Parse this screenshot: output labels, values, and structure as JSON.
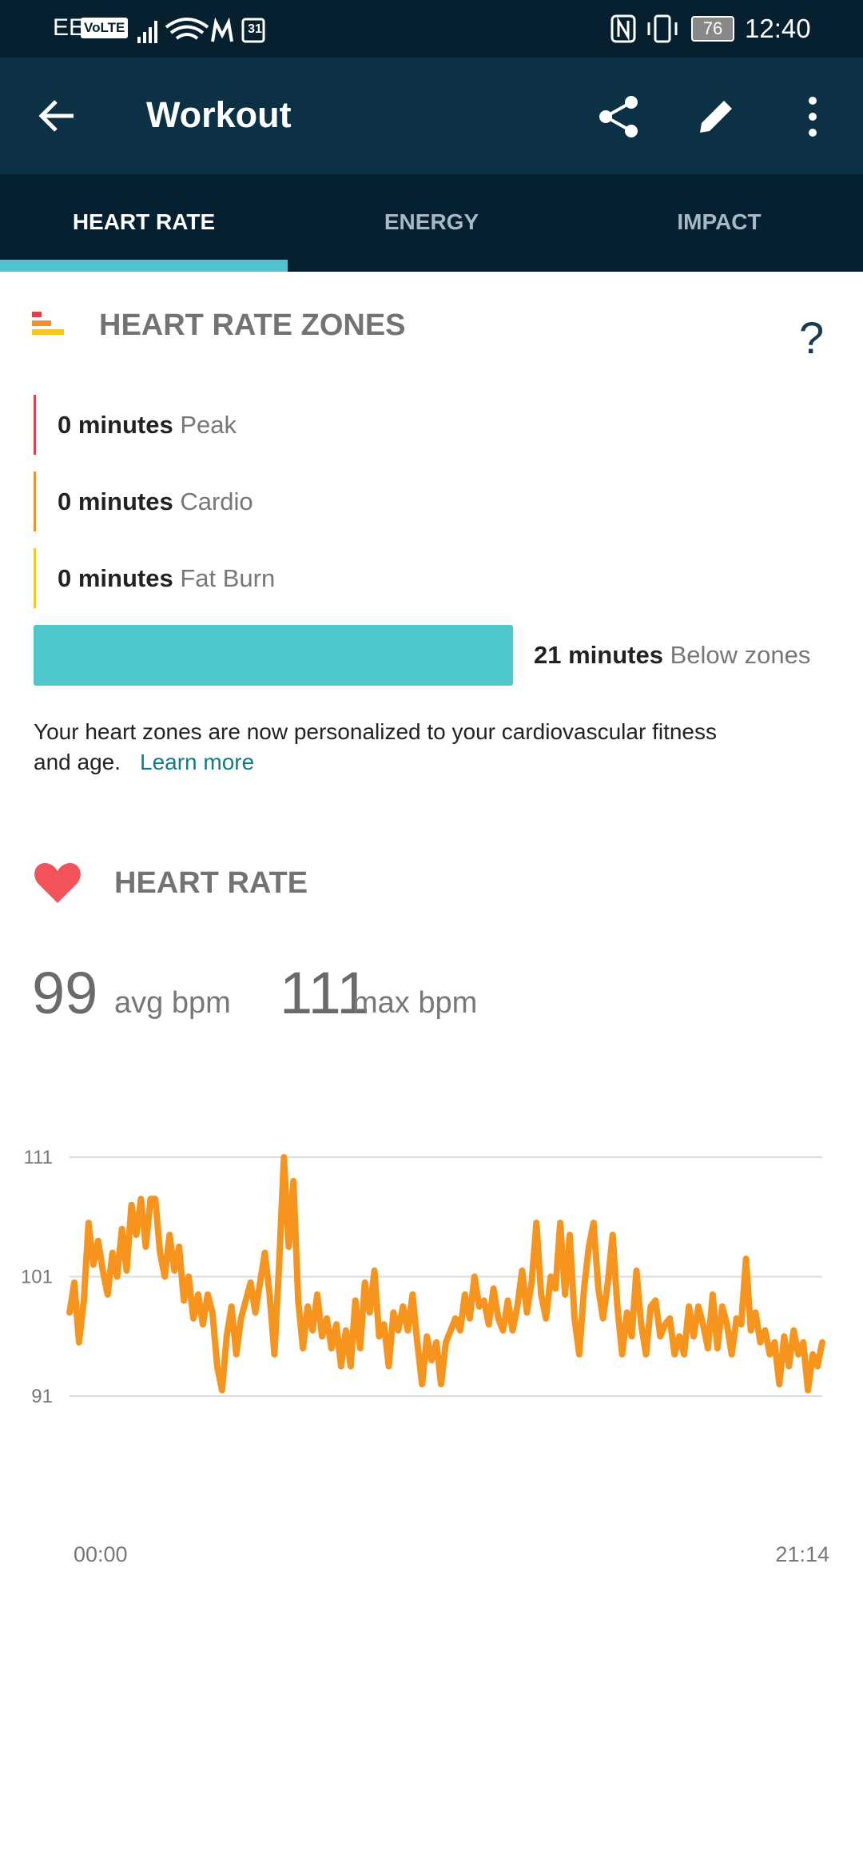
{
  "status_bar": {
    "carrier": "EE",
    "volte": "VoLTE",
    "calendar": "31",
    "battery": "76",
    "time": "12:40"
  },
  "app_bar": {
    "title": "Workout"
  },
  "tabs": [
    "HEART RATE",
    "ENERGY",
    "IMPACT"
  ],
  "zones": {
    "title": "HEART RATE ZONES",
    "help": "?",
    "rows": [
      {
        "minutes": "0 minutes",
        "label": "Peak"
      },
      {
        "minutes": "0 minutes",
        "label": "Cardio"
      },
      {
        "minutes": "0 minutes",
        "label": "Fat Burn"
      }
    ],
    "below": {
      "minutes": "21 minutes",
      "label": "Below zones"
    },
    "note_line1": "Your heart zones are now personalized to your cardiovascular fitness",
    "note_line2": "and age.",
    "link": "Learn more"
  },
  "heart_rate": {
    "title": "HEART RATE",
    "avg": "99",
    "avg_unit": "avg bpm",
    "max": "111",
    "max_unit": "max bpm"
  },
  "chart_data": {
    "type": "line",
    "color": "#f7941d",
    "grid": true,
    "ylim": [
      91,
      111
    ],
    "yticks": [
      91,
      101,
      111
    ],
    "categories": [
      "00:00",
      null,
      null,
      null,
      null,
      null,
      null,
      null,
      null,
      null,
      null,
      null,
      null,
      null,
      null,
      null,
      null,
      null,
      null,
      null,
      null,
      null,
      null,
      null,
      null,
      null,
      null,
      null,
      null,
      null,
      null,
      null,
      null,
      null,
      null,
      null,
      null,
      null,
      null,
      null,
      null,
      null,
      null,
      null,
      null,
      null,
      null,
      null,
      null,
      null,
      null,
      null,
      null,
      null,
      null,
      null,
      null,
      null,
      null,
      null,
      null,
      null,
      null,
      null,
      null,
      null,
      null,
      null,
      null,
      null,
      null,
      null,
      null,
      null,
      null,
      null,
      null,
      null,
      null,
      null,
      null,
      null,
      null,
      null,
      null,
      null,
      null,
      null,
      null,
      null,
      null,
      null,
      null,
      null,
      null,
      null,
      null,
      null,
      null,
      null,
      null,
      null,
      null,
      null,
      null,
      null,
      null,
      null,
      null,
      null,
      null,
      null,
      null,
      null,
      null,
      null,
      null,
      null,
      null,
      null,
      null,
      null,
      null,
      null,
      null,
      null,
      null,
      null,
      null,
      null,
      null,
      null,
      null,
      null,
      null,
      null,
      null,
      null,
      null,
      null,
      null,
      null,
      null,
      null,
      null,
      null,
      null,
      null,
      null,
      null,
      null,
      null,
      null,
      null,
      null,
      null,
      null,
      null,
      "21:14"
    ],
    "values": [
      98,
      100.5,
      95.5,
      99,
      105.5,
      102,
      104,
      101.5,
      99.5,
      103,
      101,
      105,
      101.5,
      107,
      104.5,
      107.5,
      103.5,
      107.5,
      107.5,
      103,
      101,
      104.5,
      101.5,
      103.5,
      99,
      101,
      97.5,
      99.5,
      97,
      99.5,
      98,
      93.5,
      91.5,
      96,
      98.5,
      94.5,
      97.5,
      99,
      100.5,
      98,
      100.5,
      103,
      99.5,
      94.5,
      102,
      111,
      103.5,
      109,
      99,
      95,
      98.5,
      96.5,
      99.5,
      96,
      97.5,
      95,
      97,
      93.5,
      96.5,
      93.5,
      99,
      95,
      100.5,
      98,
      101.5,
      96,
      97,
      93.5,
      98,
      96.5,
      98.5,
      96.5,
      99.5,
      95.5,
      92,
      96,
      94,
      95.5,
      92,
      95.5,
      96.5,
      97.5,
      96.5,
      99.5,
      97.5,
      101,
      98.5,
      99,
      97,
      100,
      97.5,
      96.5,
      99,
      96.5,
      98.5,
      101.5,
      98,
      100.5,
      105.5,
      99.5,
      97.5,
      101,
      100,
      105.5,
      99.5,
      104.5,
      97.5,
      94.5,
      100,
      103.5,
      105.5,
      100,
      97.5,
      100.5,
      104.5,
      98.5,
      94.5,
      98,
      96,
      101.5,
      97,
      94.5,
      98.5,
      99,
      96,
      97,
      97.5,
      94.5,
      96,
      94.5,
      98.5,
      96,
      98.5,
      97,
      95,
      99.5,
      95,
      98.5,
      97,
      94.5,
      97.5,
      97,
      102.5,
      96.5,
      98,
      95.5,
      96.5,
      94.5,
      95.5,
      92,
      96,
      93.5,
      96.5,
      94.5,
      95.5,
      91.5,
      94.5,
      93.5,
      95.5
    ]
  }
}
